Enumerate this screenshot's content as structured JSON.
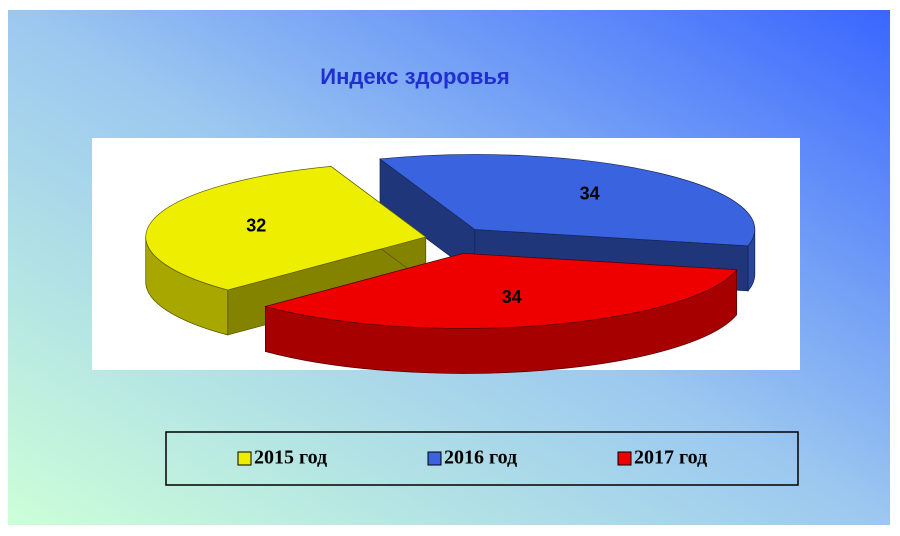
{
  "chart_data": {
    "type": "pie",
    "title": "Индекс здоровья",
    "categories": [
      "2015 год",
      "2016 год",
      "2017 год"
    ],
    "values": [
      32,
      34,
      34
    ],
    "colors": [
      "#eeee00",
      "#3a63e0",
      "#ee0000"
    ],
    "legend": "bottom"
  }
}
